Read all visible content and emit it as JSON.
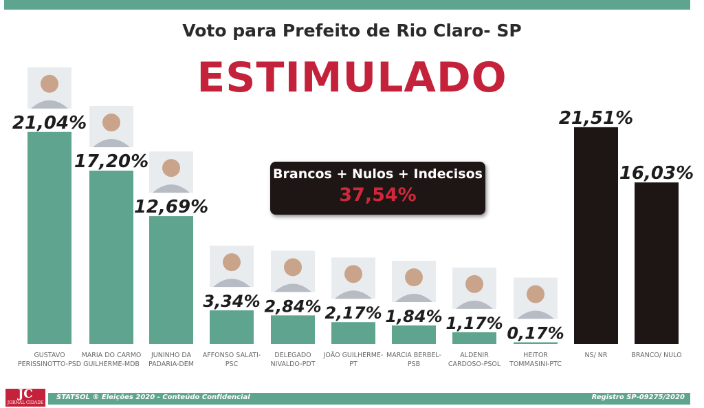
{
  "header": {
    "title": "Voto para Prefeito de Rio Claro- SP",
    "subtitle": "ESTIMULADO"
  },
  "callout": {
    "label": "Brancos + Nulos + Indecisos",
    "value": "37,54%"
  },
  "footer": {
    "left_text": "STATSOL ® Eleições 2020 - Conteúdo Confidencial",
    "right_text": "Registro SP-09275/2020",
    "logo_text": "JC",
    "logo_subtext": "JORNAL CIDADE"
  },
  "colors": {
    "candidate_bar": "#5fa48e",
    "other_bar": "#1e1614",
    "title_red": "#c4223a",
    "band": "#5fa48e"
  },
  "chart_data": {
    "type": "bar",
    "title": "Voto para Prefeito de Rio Claro- SP",
    "subtitle": "ESTIMULADO",
    "xlabel": "",
    "ylabel": "",
    "ylim": [
      0,
      22
    ],
    "grid": false,
    "categories": [
      [
        "GUSTAVO",
        "PERISSINOTTO-PSD"
      ],
      [
        "MARIA DO CARMO",
        "GUILHERME-MDB"
      ],
      [
        "JUNINHO DA",
        "PADARIA-DEM"
      ],
      [
        "AFFONSO SALATI-",
        "PSC"
      ],
      [
        "DELEGADO",
        "NIVALDO-PDT"
      ],
      [
        "JOÃO GUILHERME-",
        "PT"
      ],
      [
        "MARCIA BERBEL-",
        "PSB"
      ],
      [
        "ALDENIR",
        "CARDOSO-PSOL"
      ],
      [
        "HEITOR",
        "TOMMASINI-PTC"
      ],
      [
        "NS/ NR"
      ],
      [
        "BRANCO/ NULO"
      ]
    ],
    "values": [
      21.04,
      17.2,
      12.69,
      3.34,
      2.84,
      2.17,
      1.84,
      1.17,
      0.17,
      21.51,
      16.03
    ],
    "value_labels": [
      "21,04%",
      "17,20%",
      "12,69%",
      "3,34%",
      "2,84%",
      "2,17%",
      "1,84%",
      "1,17%",
      "0,17%",
      "21,51%",
      "16,03%"
    ],
    "bar_groups": [
      "candidate",
      "candidate",
      "candidate",
      "candidate",
      "candidate",
      "candidate",
      "candidate",
      "candidate",
      "candidate",
      "other",
      "other"
    ],
    "photos": [
      true,
      true,
      true,
      true,
      true,
      true,
      true,
      true,
      true,
      false,
      false
    ]
  }
}
